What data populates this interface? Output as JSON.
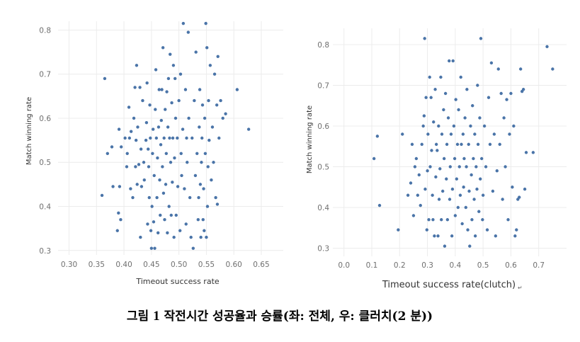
{
  "caption": {
    "prefix": "그림",
    "number": "1",
    "text": "작전시간 성공율과 승률(좌: 전체, 우: 클러치(2 분))"
  },
  "colors": {
    "point": "#4a74a8",
    "grid": "#ececec",
    "tick": "#6f6f6f"
  },
  "chart_data": [
    {
      "type": "scatter",
      "xlabel": "Timeout success rate",
      "ylabel": "Match winning rate",
      "xticks": [
        "0.30",
        "0.35",
        "0.40",
        "0.45",
        "0.50",
        "0.55",
        "0.60",
        "0.65"
      ],
      "yticks": [
        "0.3",
        "0.4",
        "0.5",
        "0.6",
        "0.7",
        "0.8"
      ],
      "xlim": [
        0.28,
        0.69
      ],
      "ylim": [
        0.29,
        0.82
      ],
      "grid": true,
      "points": [
        [
          0.36,
          0.425
        ],
        [
          0.365,
          0.69
        ],
        [
          0.37,
          0.52
        ],
        [
          0.378,
          0.535
        ],
        [
          0.38,
          0.445
        ],
        [
          0.388,
          0.345
        ],
        [
          0.39,
          0.385
        ],
        [
          0.391,
          0.575
        ],
        [
          0.392,
          0.445
        ],
        [
          0.394,
          0.37
        ],
        [
          0.395,
          0.535
        ],
        [
          0.402,
          0.555
        ],
        [
          0.405,
          0.49
        ],
        [
          0.406,
          0.52
        ],
        [
          0.409,
          0.625
        ],
        [
          0.41,
          0.555
        ],
        [
          0.412,
          0.44
        ],
        [
          0.413,
          0.57
        ],
        [
          0.416,
          0.42
        ],
        [
          0.418,
          0.6
        ],
        [
          0.42,
          0.67
        ],
        [
          0.421,
          0.49
        ],
        [
          0.422,
          0.55
        ],
        [
          0.423,
          0.72
        ],
        [
          0.424,
          0.45
        ],
        [
          0.425,
          0.58
        ],
        [
          0.427,
          0.495
        ],
        [
          0.429,
          0.67
        ],
        [
          0.43,
          0.33
        ],
        [
          0.431,
          0.53
        ],
        [
          0.432,
          0.445
        ],
        [
          0.434,
          0.64
        ],
        [
          0.436,
          0.5
        ],
        [
          0.437,
          0.46
        ],
        [
          0.44,
          0.55
        ],
        [
          0.441,
          0.59
        ],
        [
          0.442,
          0.68
        ],
        [
          0.443,
          0.36
        ],
        [
          0.444,
          0.53
        ],
        [
          0.445,
          0.49
        ],
        [
          0.446,
          0.42
        ],
        [
          0.447,
          0.63
        ],
        [
          0.448,
          0.555
        ],
        [
          0.449,
          0.345
        ],
        [
          0.45,
          0.305
        ],
        [
          0.451,
          0.4
        ],
        [
          0.452,
          0.52
        ],
        [
          0.453,
          0.575
        ],
        [
          0.454,
          0.365
        ],
        [
          0.455,
          0.47
        ],
        [
          0.456,
          0.305
        ],
        [
          0.457,
          0.62
        ],
        [
          0.458,
          0.71
        ],
        [
          0.459,
          0.555
        ],
        [
          0.46,
          0.42
        ],
        [
          0.461,
          0.51
        ],
        [
          0.462,
          0.34
        ],
        [
          0.463,
          0.58
        ],
        [
          0.464,
          0.665
        ],
        [
          0.465,
          0.46
        ],
        [
          0.466,
          0.38
        ],
        [
          0.467,
          0.54
        ],
        [
          0.468,
          0.595
        ],
        [
          0.469,
          0.665
        ],
        [
          0.47,
          0.49
        ],
        [
          0.471,
          0.76
        ],
        [
          0.472,
          0.43
        ],
        [
          0.473,
          0.555
        ],
        [
          0.474,
          0.37
        ],
        [
          0.475,
          0.62
        ],
        [
          0.476,
          0.45
        ],
        [
          0.477,
          0.52
        ],
        [
          0.478,
          0.66
        ],
        [
          0.479,
          0.34
        ],
        [
          0.48,
          0.58
        ],
        [
          0.481,
          0.69
        ],
        [
          0.482,
          0.4
        ],
        [
          0.483,
          0.555
        ],
        [
          0.484,
          0.745
        ],
        [
          0.485,
          0.5
        ],
        [
          0.486,
          0.38
        ],
        [
          0.487,
          0.635
        ],
        [
          0.488,
          0.455
        ],
        [
          0.489,
          0.555
        ],
        [
          0.49,
          0.72
        ],
        [
          0.491,
          0.33
        ],
        [
          0.492,
          0.51
        ],
        [
          0.493,
          0.69
        ],
        [
          0.494,
          0.6
        ],
        [
          0.495,
          0.38
        ],
        [
          0.497,
          0.555
        ],
        [
          0.498,
          0.445
        ],
        [
          0.5,
          0.64
        ],
        [
          0.502,
          0.345
        ],
        [
          0.503,
          0.7
        ],
        [
          0.504,
          0.52
        ],
        [
          0.505,
          0.47
        ],
        [
          0.507,
          0.575
        ],
        [
          0.508,
          0.815
        ],
        [
          0.51,
          0.44
        ],
        [
          0.512,
          0.665
        ],
        [
          0.513,
          0.36
        ],
        [
          0.514,
          0.555
        ],
        [
          0.515,
          0.5
        ],
        [
          0.517,
          0.795
        ],
        [
          0.518,
          0.6
        ],
        [
          0.52,
          0.42
        ],
        [
          0.522,
          0.33
        ],
        [
          0.524,
          0.555
        ],
        [
          0.526,
          0.305
        ],
        [
          0.528,
          0.64
        ],
        [
          0.53,
          0.47
        ],
        [
          0.531,
          0.75
        ],
        [
          0.533,
          0.52
        ],
        [
          0.535,
          0.37
        ],
        [
          0.536,
          0.42
        ],
        [
          0.537,
          0.58
        ],
        [
          0.538,
          0.665
        ],
        [
          0.539,
          0.45
        ],
        [
          0.54,
          0.33
        ],
        [
          0.541,
          0.5
        ],
        [
          0.542,
          0.555
        ],
        [
          0.543,
          0.63
        ],
        [
          0.544,
          0.37
        ],
        [
          0.545,
          0.44
        ],
        [
          0.546,
          0.345
        ],
        [
          0.547,
          0.6
        ],
        [
          0.548,
          0.52
        ],
        [
          0.549,
          0.815
        ],
        [
          0.55,
          0.33
        ],
        [
          0.551,
          0.76
        ],
        [
          0.552,
          0.4
        ],
        [
          0.553,
          0.49
        ],
        [
          0.554,
          0.64
        ],
        [
          0.555,
          0.55
        ],
        [
          0.557,
          0.72
        ],
        [
          0.559,
          0.46
        ],
        [
          0.561,
          0.58
        ],
        [
          0.563,
          0.5
        ],
        [
          0.565,
          0.7
        ],
        [
          0.567,
          0.42
        ],
        [
          0.569,
          0.63
        ],
        [
          0.57,
          0.405
        ],
        [
          0.571,
          0.74
        ],
        [
          0.573,
          0.555
        ],
        [
          0.576,
          0.64
        ],
        [
          0.58,
          0.6
        ],
        [
          0.585,
          0.61
        ],
        [
          0.606,
          0.665
        ],
        [
          0.627,
          0.575
        ]
      ]
    },
    {
      "type": "scatter",
      "xlabel": "Timeout success rate(clutch)",
      "ylabel": "Match winning rate",
      "xticks": [
        "0.0",
        "0.1",
        "0.2",
        "0.3",
        "0.4",
        "0.5",
        "0.6",
        "0.7"
      ],
      "yticks": [
        "0.3",
        "0.4",
        "0.5",
        "0.6",
        "0.7",
        "0.8"
      ],
      "xlim": [
        -0.04,
        0.8
      ],
      "ylim": [
        0.28,
        0.84
      ],
      "grid": true,
      "points": [
        [
          0.108,
          0.52
        ],
        [
          0.12,
          0.575
        ],
        [
          0.128,
          0.405
        ],
        [
          0.195,
          0.345
        ],
        [
          0.21,
          0.58
        ],
        [
          0.23,
          0.43
        ],
        [
          0.24,
          0.46
        ],
        [
          0.245,
          0.555
        ],
        [
          0.25,
          0.38
        ],
        [
          0.255,
          0.5
        ],
        [
          0.26,
          0.52
        ],
        [
          0.265,
          0.43
        ],
        [
          0.27,
          0.48
        ],
        [
          0.275,
          0.405
        ],
        [
          0.28,
          0.555
        ],
        [
          0.285,
          0.6
        ],
        [
          0.288,
          0.625
        ],
        [
          0.29,
          0.815
        ],
        [
          0.292,
          0.445
        ],
        [
          0.295,
          0.67
        ],
        [
          0.298,
          0.345
        ],
        [
          0.3,
          0.49
        ],
        [
          0.302,
          0.58
        ],
        [
          0.305,
          0.37
        ],
        [
          0.308,
          0.72
        ],
        [
          0.31,
          0.5
        ],
        [
          0.313,
          0.67
        ],
        [
          0.315,
          0.54
        ],
        [
          0.318,
          0.43
        ],
        [
          0.32,
          0.37
        ],
        [
          0.322,
          0.61
        ],
        [
          0.325,
          0.33
        ],
        [
          0.328,
          0.69
        ],
        [
          0.33,
          0.475
        ],
        [
          0.332,
          0.555
        ],
        [
          0.335,
          0.54
        ],
        [
          0.338,
          0.33
        ],
        [
          0.34,
          0.6
        ],
        [
          0.342,
          0.42
        ],
        [
          0.345,
          0.495
        ],
        [
          0.348,
          0.72
        ],
        [
          0.35,
          0.37
        ],
        [
          0.352,
          0.58
        ],
        [
          0.355,
          0.44
        ],
        [
          0.358,
          0.64
        ],
        [
          0.36,
          0.52
        ],
        [
          0.362,
          0.305
        ],
        [
          0.365,
          0.68
        ],
        [
          0.368,
          0.47
        ],
        [
          0.37,
          0.555
        ],
        [
          0.372,
          0.37
        ],
        [
          0.375,
          0.62
        ],
        [
          0.378,
          0.76
        ],
        [
          0.38,
          0.42
        ],
        [
          0.382,
          0.5
        ],
        [
          0.385,
          0.58
        ],
        [
          0.388,
          0.33
        ],
        [
          0.39,
          0.445
        ],
        [
          0.392,
          0.76
        ],
        [
          0.395,
          0.6
        ],
        [
          0.398,
          0.52
        ],
        [
          0.4,
          0.38
        ],
        [
          0.402,
          0.665
        ],
        [
          0.405,
          0.47
        ],
        [
          0.408,
          0.555
        ],
        [
          0.41,
          0.4
        ],
        [
          0.412,
          0.64
        ],
        [
          0.415,
          0.5
        ],
        [
          0.418,
          0.43
        ],
        [
          0.42,
          0.72
        ],
        [
          0.422,
          0.555
        ],
        [
          0.425,
          0.36
        ],
        [
          0.428,
          0.58
        ],
        [
          0.43,
          0.45
        ],
        [
          0.432,
          0.52
        ],
        [
          0.435,
          0.62
        ],
        [
          0.438,
          0.4
        ],
        [
          0.44,
          0.5
        ],
        [
          0.442,
          0.69
        ],
        [
          0.445,
          0.345
        ],
        [
          0.448,
          0.555
        ],
        [
          0.45,
          0.44
        ],
        [
          0.452,
          0.305
        ],
        [
          0.455,
          0.6
        ],
        [
          0.458,
          0.48
        ],
        [
          0.46,
          0.37
        ],
        [
          0.462,
          0.65
        ],
        [
          0.465,
          0.52
        ],
        [
          0.468,
          0.42
        ],
        [
          0.47,
          0.58
        ],
        [
          0.472,
          0.33
        ],
        [
          0.475,
          0.5
        ],
        [
          0.478,
          0.445
        ],
        [
          0.48,
          0.7
        ],
        [
          0.482,
          0.555
        ],
        [
          0.485,
          0.39
        ],
        [
          0.488,
          0.62
        ],
        [
          0.49,
          0.47
        ],
        [
          0.492,
          0.815
        ],
        [
          0.495,
          0.52
        ],
        [
          0.498,
          0.37
        ],
        [
          0.5,
          0.43
        ],
        [
          0.505,
          0.6
        ],
        [
          0.51,
          0.5
        ],
        [
          0.515,
          0.345
        ],
        [
          0.52,
          0.67
        ],
        [
          0.525,
          0.555
        ],
        [
          0.53,
          0.755
        ],
        [
          0.535,
          0.44
        ],
        [
          0.54,
          0.58
        ],
        [
          0.545,
          0.33
        ],
        [
          0.55,
          0.49
        ],
        [
          0.555,
          0.74
        ],
        [
          0.56,
          0.555
        ],
        [
          0.565,
          0.68
        ],
        [
          0.57,
          0.42
        ],
        [
          0.575,
          0.62
        ],
        [
          0.58,
          0.5
        ],
        [
          0.585,
          0.665
        ],
        [
          0.59,
          0.37
        ],
        [
          0.595,
          0.58
        ],
        [
          0.6,
          0.68
        ],
        [
          0.605,
          0.45
        ],
        [
          0.61,
          0.6
        ],
        [
          0.615,
          0.33
        ],
        [
          0.62,
          0.345
        ],
        [
          0.625,
          0.42
        ],
        [
          0.63,
          0.425
        ],
        [
          0.635,
          0.74
        ],
        [
          0.64,
          0.685
        ],
        [
          0.645,
          0.69
        ],
        [
          0.65,
          0.445
        ],
        [
          0.655,
          0.535
        ],
        [
          0.68,
          0.535
        ],
        [
          0.73,
          0.795
        ],
        [
          0.75,
          0.74
        ]
      ]
    }
  ]
}
